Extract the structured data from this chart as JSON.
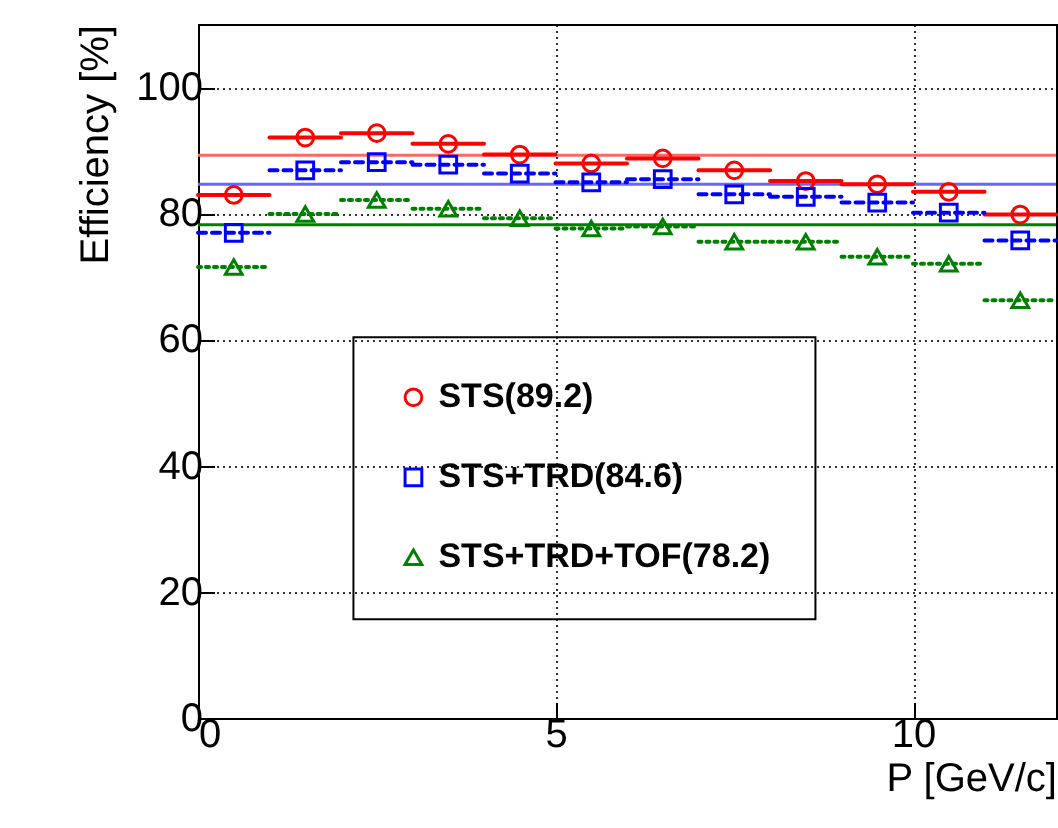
{
  "chart_data": {
    "type": "scatter",
    "xlabel": "P [GeV/c]",
    "ylabel": "Efficiency [%]",
    "x": [
      0.5,
      1.5,
      2.5,
      3.5,
      4.5,
      5.5,
      6.5,
      7.5,
      8.5,
      9.5,
      10.5,
      11.5
    ],
    "series": [
      {
        "name": "STS(89.2)",
        "color": "#ff0000",
        "marker": "circle",
        "line_style": "solid",
        "values": [
          82.9,
          92.0,
          92.7,
          91.0,
          89.3,
          87.9,
          88.7,
          86.8,
          85.1,
          84.6,
          83.4,
          79.8
        ],
        "xerrors": [
          0.5,
          0.5,
          0.5,
          0.5,
          0.5,
          0.5,
          0.5,
          0.5,
          0.5,
          0.5,
          0.5,
          0.5
        ]
      },
      {
        "name": "STS+TRD(84.6)",
        "color": "#0000ff",
        "marker": "square",
        "line_style": "dashed",
        "values": [
          76.9,
          86.8,
          88.1,
          87.7,
          86.3,
          84.9,
          85.4,
          83.0,
          82.6,
          81.7,
          80.1,
          75.7
        ],
        "xerrors": [
          0.5,
          0.5,
          0.5,
          0.5,
          0.5,
          0.5,
          0.5,
          0.5,
          0.5,
          0.5,
          0.5,
          0.5
        ]
      },
      {
        "name": "STS+TRD+TOF(78.2)",
        "color": "#008000",
        "marker": "triangle",
        "line_style": "dotted",
        "values": [
          71.5,
          79.9,
          82.1,
          80.7,
          79.2,
          77.6,
          77.9,
          75.5,
          75.5,
          73.1,
          72.0,
          66.2
        ],
        "xerrors": [
          0.5,
          0.5,
          0.5,
          0.5,
          0.5,
          0.5,
          0.5,
          0.5,
          0.5,
          0.5,
          0.5,
          0.5
        ]
      }
    ],
    "ref_lines": [
      {
        "axis": "y",
        "value": 89.2,
        "color": "#ff6666"
      },
      {
        "axis": "y",
        "value": 84.6,
        "color": "#6666ff"
      },
      {
        "axis": "y",
        "value": 78.2,
        "color": "#008000"
      }
    ],
    "xlim": [
      0,
      12
    ],
    "xticks": [
      0,
      5,
      10
    ],
    "ylim": [
      0,
      110
    ],
    "yticks": [
      0,
      20,
      40,
      60,
      80,
      100
    ],
    "grid": true,
    "legend": "bottom"
  }
}
